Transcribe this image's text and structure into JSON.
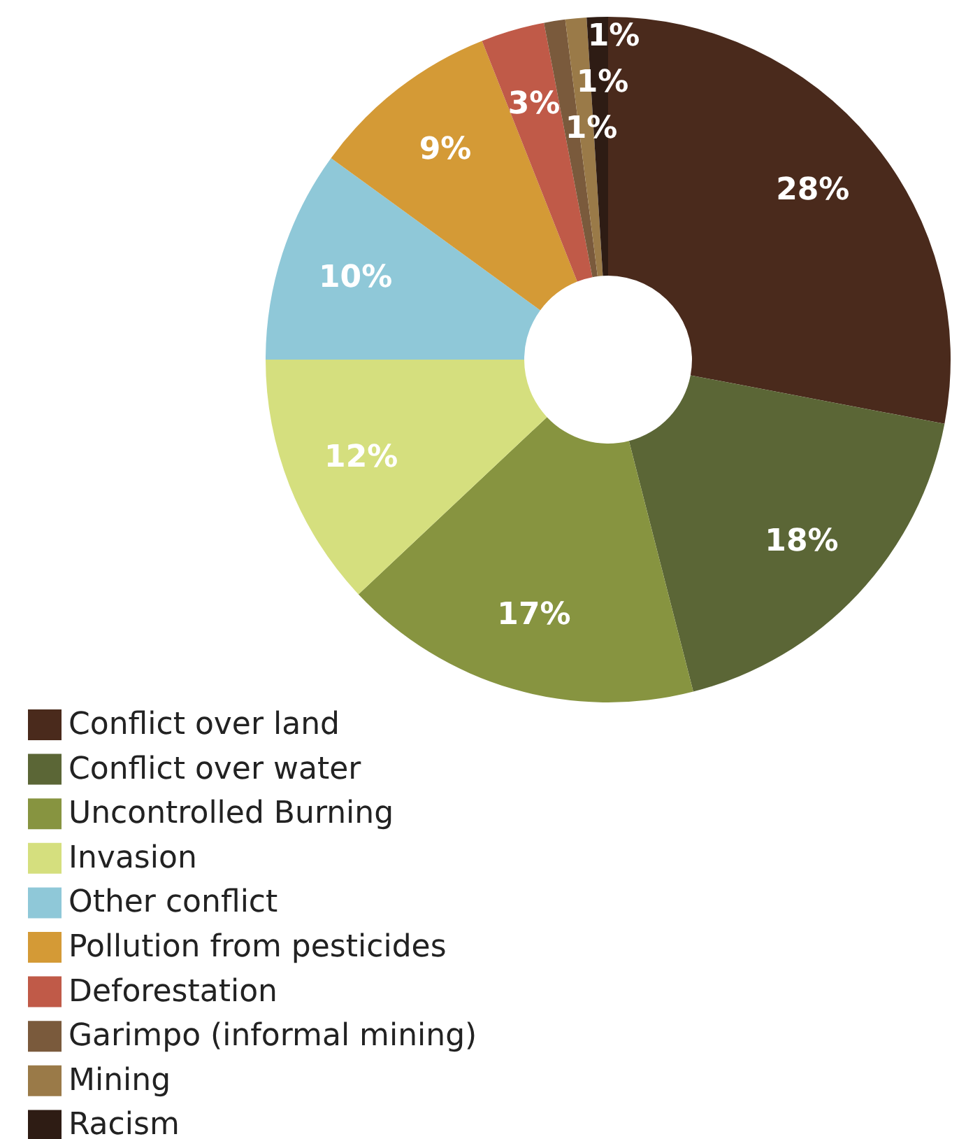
{
  "chart_data": {
    "type": "donut",
    "categories": [
      "Conflict over land",
      "Conflict over water",
      "Uncontrolled Burning",
      "Invasion",
      "Other conflict",
      "Pollution from pesticides",
      "Deforestation",
      "Garimpo (informal mining)",
      "Mining",
      "Racism"
    ],
    "values": [
      28,
      18,
      17,
      12,
      10,
      9,
      3,
      1,
      1,
      1
    ],
    "colors": [
      "#4a2a1c",
      "#5b6636",
      "#879440",
      "#d5df7e",
      "#8fc8d8",
      "#d49a36",
      "#c05a48",
      "#7a5a3c",
      "#9a7a48",
      "#2e1c14"
    ],
    "value_labels": [
      "28%",
      "18%",
      "17%",
      "12%",
      "10%",
      "9%",
      "3%",
      "1%",
      "1%",
      "1%"
    ],
    "legend": "bottom left"
  }
}
